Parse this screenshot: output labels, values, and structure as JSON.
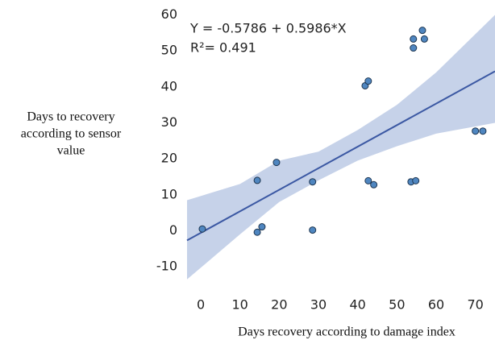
{
  "chart_data": {
    "type": "scatter",
    "xlabel": "Days recovery according to damage index",
    "ylabel_lines": [
      "Days to recovery",
      "according to sensor",
      "value"
    ],
    "annotations": [
      "Y = -0.5786 + 0.5986*X",
      "R²= 0.491"
    ],
    "x": [
      0.4,
      14.4,
      14.4,
      15.6,
      19.3,
      28.5,
      28.5,
      41.9,
      42.7,
      42.7,
      44.1,
      53.6,
      54.8,
      54.2,
      54.2,
      56.5,
      57,
      70,
      71.9
    ],
    "series": [
      {
        "color": "#4f86c0",
        "values": [
          0.5,
          14,
          -0.4,
          1.1,
          19,
          13.6,
          0.2,
          40.3,
          41.6,
          13.9,
          12.8,
          13.6,
          13.9,
          53.3,
          50.8,
          55.7,
          53.3,
          27.7,
          27.7
        ]
      }
    ],
    "fit_line": {
      "color": "#3b58a3",
      "x": [
        -3.5,
        75
      ],
      "y": [
        -2.674,
        44.32
      ]
    },
    "band": {
      "color": "#c6d2e9",
      "x": [
        -3.5,
        10,
        20,
        30,
        40,
        50,
        60,
        75
      ],
      "lower": [
        -13.5,
        -1,
        8,
        14,
        19.5,
        23.5,
        27,
        30
      ],
      "upper": [
        8.5,
        13,
        19.5,
        22,
        28,
        35,
        44,
        60
      ]
    },
    "xlim": [
      -3.5,
      75
    ],
    "ylim": [
      -14,
      61
    ],
    "xticks": [
      0,
      10,
      20,
      30,
      40,
      50,
      60,
      70
    ],
    "yticks": [
      -10,
      0,
      10,
      20,
      30,
      40,
      50,
      60
    ],
    "grid": false
  }
}
